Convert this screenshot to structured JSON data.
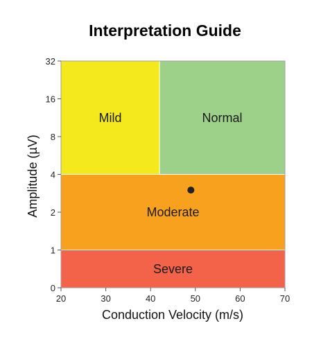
{
  "chart_data": {
    "type": "scatter",
    "title": "Interpretation Guide",
    "xlabel": "Conduction Velocity (m/s)",
    "ylabel": "Amplitude (µV)",
    "xlim": [
      20,
      70
    ],
    "x_ticks": [
      20,
      30,
      40,
      50,
      60,
      70
    ],
    "x_tick_labels": [
      "20",
      "30",
      "40",
      "50",
      "60",
      "70"
    ],
    "y_scale": "log2-piecewise (0 to 1 linear, 1 to 32 log)",
    "ylim": [
      0,
      32
    ],
    "y_ticks": [
      0,
      1,
      2,
      4,
      8,
      16,
      32
    ],
    "y_tick_labels": [
      "0",
      "1",
      "2",
      "4",
      "8",
      "16",
      "32"
    ],
    "grid": false,
    "legend": "none",
    "zones": [
      {
        "label": "Severe",
        "x_range": [
          20,
          70
        ],
        "y_range": [
          0,
          1
        ],
        "color": "#f26349"
      },
      {
        "label": "Moderate",
        "x_range": [
          20,
          70
        ],
        "y_range": [
          1,
          4
        ],
        "color": "#f8a11e"
      },
      {
        "label": "Mild",
        "x_range": [
          20,
          42
        ],
        "y_range": [
          4,
          32
        ],
        "color": "#f3e91c"
      },
      {
        "label": "Normal",
        "x_range": [
          42,
          70
        ],
        "y_range": [
          4,
          32
        ],
        "color": "#9dd189"
      }
    ],
    "points": [
      {
        "x": 49,
        "y": 3.0,
        "color": "#222222"
      }
    ]
  }
}
